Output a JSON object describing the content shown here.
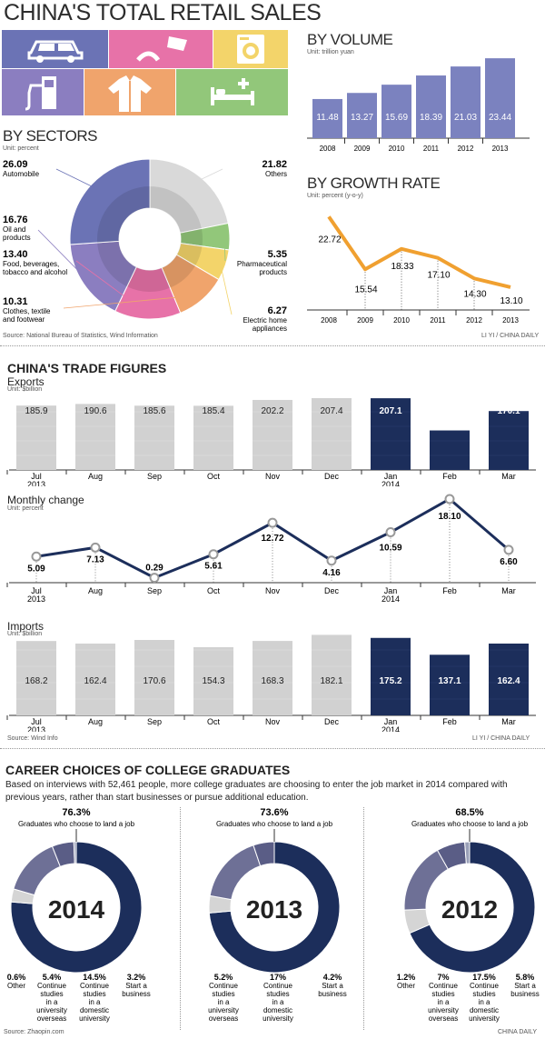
{
  "header": {
    "title": "CHINA'S TOTAL RETAIL SALES"
  },
  "icons": [
    "car-icon",
    "coffee-croissant-icon",
    "washing-machine-icon",
    "gas-pump-icon",
    "clothes-icon",
    "bed-icon"
  ],
  "sectors": {
    "title": "BY SECTORS",
    "unit": "Unit: percent",
    "source": "Source: National Bureau of Statistics, Wind Information"
  },
  "volume": {
    "title": "BY VOLUME",
    "unit": "Unit: trillion yuan"
  },
  "growth": {
    "title": "BY GROWTH RATE",
    "unit": "Unit: percent (y-o-y)",
    "credit": "LI YI / CHINA DAILY"
  },
  "trade": {
    "title": "CHINA'S TRADE FIGURES",
    "exports_title": "Exports",
    "exports_unit": "Unit: $billion",
    "change_title": "Monthly change",
    "change_unit": "Unit: percent",
    "imports_title": "Imports",
    "imports_unit": "Unit: $billion",
    "source": "Source: Wind Info",
    "credit": "LI YI / CHINA DAILY",
    "months": [
      "Jul\n2013",
      "Aug",
      "Sep",
      "Oct",
      "Nov",
      "Dec",
      "Jan\n2014",
      "Feb",
      "Mar"
    ]
  },
  "career": {
    "title": "CAREER CHOICES OF COLLEGE GRADUATES",
    "intro": "Based on interviews with 52,461 people, more college graduates are choosing to enter the job market in 2014 compared with previous years, rather than start businesses or pursue additional education.",
    "source": "Source: Zhaopin.com",
    "credit": "CHINA DAILY",
    "job_label": "Graduates who choose to land a job",
    "years": [
      {
        "year": "2014",
        "job": "76.3%",
        "other": "0.6%",
        "other_label": "Other",
        "overseas": "5.4%",
        "overseas_label": "Continue studies in a university overseas",
        "domestic": "14.5%",
        "domestic_label": "Continue studies in a domestic university",
        "business": "3.2%",
        "business_label": "Start a business"
      },
      {
        "year": "2013",
        "job": "73.6%",
        "overseas": "5.2%",
        "overseas_label": "Continue studies in a university overseas",
        "domestic": "17%",
        "domestic_label": "Continue studies in a domestic university",
        "business": "4.2%",
        "business_label": "Start a business"
      },
      {
        "year": "2012",
        "job": "68.5%",
        "other": "1.2%",
        "other_label": "Other",
        "overseas": "7%",
        "overseas_label": "Continue studies in a university overseas",
        "domestic": "17.5%",
        "domestic_label": "Continue studies in a domestic university",
        "business": "5.8%",
        "business_label": "Start a business"
      }
    ]
  },
  "chart_data": [
    {
      "type": "pie",
      "title": "BY SECTORS",
      "unit": "percent",
      "categories": [
        "Automobile",
        "Oil and products",
        "Food, beverages, tobacco and alcohol",
        "Clothes, textile and footwear",
        "Electric home appliances",
        "Pharmaceutical products",
        "Others"
      ],
      "values": [
        26.09,
        16.76,
        13.4,
        10.31,
        6.27,
        5.35,
        21.82
      ],
      "colors": [
        "#6b73b5",
        "#8b7ec0",
        "#e772a8",
        "#f0a46c",
        "#f3d46a",
        "#92c77a",
        "#d9d9d9"
      ]
    },
    {
      "type": "bar",
      "title": "BY VOLUME",
      "unit": "trillion yuan",
      "categories": [
        "2008",
        "2009",
        "2010",
        "2011",
        "2012",
        "2013"
      ],
      "values": [
        11.48,
        13.27,
        15.69,
        18.39,
        21.03,
        23.44
      ],
      "color": "#7b82bf"
    },
    {
      "type": "line",
      "title": "BY GROWTH RATE",
      "unit": "percent (y-o-y)",
      "categories": [
        "2008",
        "2009",
        "2010",
        "2011",
        "2012",
        "2013"
      ],
      "values": [
        22.72,
        15.54,
        18.33,
        17.1,
        14.3,
        13.1
      ],
      "color": "#f0a030"
    },
    {
      "type": "bar",
      "title": "Exports",
      "unit": "$billion",
      "categories": [
        "Jul 2013",
        "Aug",
        "Sep",
        "Oct",
        "Nov",
        "Dec",
        "Jan 2014",
        "Feb",
        "Mar"
      ],
      "values": [
        185.9,
        190.6,
        185.6,
        185.4,
        202.2,
        207.4,
        207.1,
        114.1,
        170.1
      ],
      "highlight_from": 6
    },
    {
      "type": "line",
      "title": "Monthly change",
      "unit": "percent",
      "categories": [
        "Jul 2013",
        "Aug",
        "Sep",
        "Oct",
        "Nov",
        "Dec",
        "Jan 2014",
        "Feb",
        "Mar"
      ],
      "values": [
        5.09,
        7.13,
        0.29,
        5.61,
        12.72,
        4.16,
        10.59,
        18.1,
        6.6
      ]
    },
    {
      "type": "bar",
      "title": "Imports",
      "unit": "$billion",
      "categories": [
        "Jul 2013",
        "Aug",
        "Sep",
        "Oct",
        "Nov",
        "Dec",
        "Jan 2014",
        "Feb",
        "Mar"
      ],
      "values": [
        168.2,
        162.4,
        170.6,
        154.3,
        168.3,
        182.1,
        175.2,
        137.1,
        162.4
      ],
      "highlight_from": 6
    },
    {
      "type": "pie",
      "title": "2014",
      "categories": [
        "Graduates who choose to land a job",
        "Start a business",
        "Continue studies in a domestic university",
        "Continue studies in a university overseas",
        "Other"
      ],
      "values": [
        76.3,
        3.2,
        14.5,
        5.4,
        0.6
      ]
    },
    {
      "type": "pie",
      "title": "2013",
      "categories": [
        "Graduates who choose to land a job",
        "Start a business",
        "Continue studies in a domestic university",
        "Continue studies in a university overseas"
      ],
      "values": [
        73.6,
        4.2,
        17,
        5.2
      ]
    },
    {
      "type": "pie",
      "title": "2012",
      "categories": [
        "Graduates who choose to land a job",
        "Start a business",
        "Continue studies in a domestic university",
        "Continue studies in a university overseas",
        "Other"
      ],
      "values": [
        68.5,
        5.8,
        17.5,
        7,
        1.2
      ]
    }
  ]
}
